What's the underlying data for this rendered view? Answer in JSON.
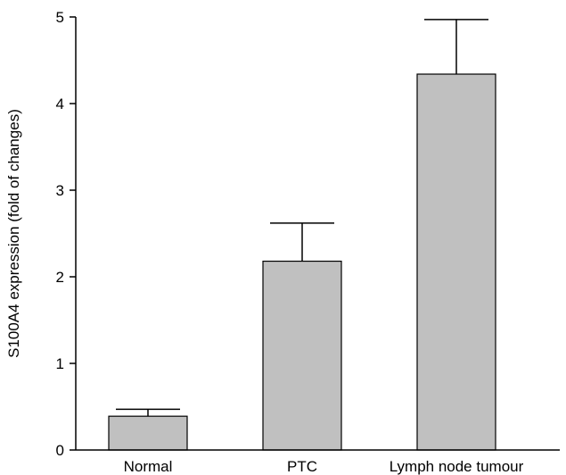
{
  "chart_data": {
    "type": "bar",
    "title": "",
    "xlabel": "",
    "ylabel": "S100A4 expression (fold of changes)",
    "categories": [
      "Normal",
      "PTC",
      "Lymph node tumour"
    ],
    "values": [
      0.39,
      2.18,
      4.34
    ],
    "error_upper": [
      0.47,
      2.62,
      4.97
    ],
    "ylim": [
      0,
      5
    ],
    "yticks": [
      0,
      1,
      2,
      3,
      4,
      5
    ],
    "ytick_labels": [
      "0",
      "1",
      "2",
      "3",
      "4",
      "5"
    ],
    "grid": false,
    "legend": "none",
    "bar_color": "#c0c0c0"
  }
}
